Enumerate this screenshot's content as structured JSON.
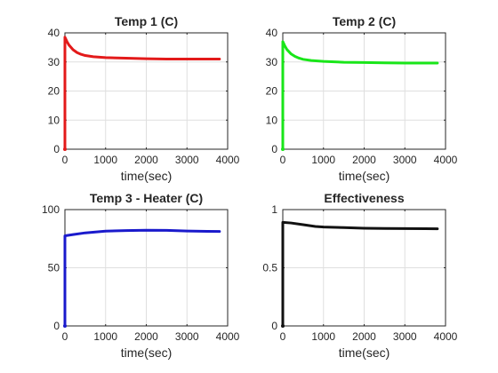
{
  "chart_data": [
    {
      "type": "line",
      "title": "Temp 1 (C)",
      "xlabel": "time(sec)",
      "ylabel": "",
      "xlim": [
        0,
        4000
      ],
      "ylim": [
        0,
        40
      ],
      "xticks": [
        0,
        1000,
        2000,
        3000,
        4000
      ],
      "yticks": [
        0,
        10,
        20,
        30,
        40
      ],
      "grid": true,
      "series": [
        {
          "color": "#e31a1a",
          "x": [
            0,
            0,
            50,
            100,
            200,
            300,
            400,
            500,
            700,
            1000,
            1500,
            2000,
            2500,
            3000,
            3500,
            3800
          ],
          "y": [
            0,
            38.5,
            37.0,
            35.8,
            34.2,
            33.2,
            32.6,
            32.2,
            31.8,
            31.5,
            31.3,
            31.1,
            31.0,
            31.0,
            31.0,
            31.0
          ]
        }
      ]
    },
    {
      "type": "line",
      "title": "Temp 2 (C)",
      "xlabel": "time(sec)",
      "ylabel": "",
      "xlim": [
        0,
        4000
      ],
      "ylim": [
        0,
        40
      ],
      "xticks": [
        0,
        1000,
        2000,
        3000,
        4000
      ],
      "yticks": [
        0,
        10,
        20,
        30,
        40
      ],
      "grid": true,
      "series": [
        {
          "color": "#19e619",
          "x": [
            0,
            0,
            50,
            100,
            200,
            300,
            400,
            500,
            700,
            1000,
            1500,
            2000,
            2500,
            3000,
            3500,
            3800
          ],
          "y": [
            0,
            37.0,
            35.5,
            34.3,
            32.8,
            31.9,
            31.3,
            30.9,
            30.5,
            30.2,
            29.9,
            29.8,
            29.7,
            29.6,
            29.6,
            29.6
          ]
        }
      ]
    },
    {
      "type": "line",
      "title": "Temp 3 - Heater (C)",
      "xlabel": "time(sec)",
      "ylabel": "",
      "xlim": [
        0,
        4000
      ],
      "ylim": [
        0,
        100
      ],
      "xticks": [
        0,
        1000,
        2000,
        3000,
        4000
      ],
      "yticks": [
        0,
        50,
        100
      ],
      "grid": true,
      "series": [
        {
          "color": "#1a1acc",
          "x": [
            0,
            0,
            200,
            500,
            1000,
            1500,
            2000,
            2500,
            3000,
            3500,
            3800
          ],
          "y": [
            0,
            77.5,
            78.5,
            80.0,
            81.5,
            82.0,
            82.3,
            82.2,
            81.6,
            81.3,
            81.2
          ]
        }
      ]
    },
    {
      "type": "line",
      "title": "Effectiveness",
      "xlabel": "time(sec)",
      "ylabel": "",
      "xlim": [
        0,
        4000
      ],
      "ylim": [
        0,
        1
      ],
      "xticks": [
        0,
        1000,
        2000,
        3000,
        4000
      ],
      "yticks": [
        0,
        0.5,
        1
      ],
      "grid": true,
      "series": [
        {
          "color": "#111111",
          "x": [
            0,
            0,
            200,
            500,
            800,
            1000,
            1500,
            2000,
            2500,
            3000,
            3500,
            3800
          ],
          "y": [
            0,
            0.89,
            0.885,
            0.87,
            0.855,
            0.85,
            0.845,
            0.84,
            0.838,
            0.837,
            0.836,
            0.835
          ]
        }
      ]
    }
  ]
}
